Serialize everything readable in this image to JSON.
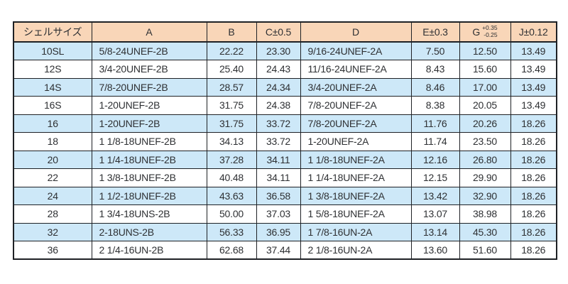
{
  "table": {
    "name": "shell-size-spec-table",
    "colors": {
      "header_bg": "#f9d6b8",
      "row_alt_bg": "#cde8f8",
      "row_bg": "#ffffff",
      "border": "#1e2125",
      "text": "#2e3033"
    },
    "columns": [
      {
        "key": "shell-size",
        "label": "シェルサイズ",
        "align": "center"
      },
      {
        "key": "a",
        "label": "A",
        "align": "left"
      },
      {
        "key": "b",
        "label": "B",
        "align": "center"
      },
      {
        "key": "c",
        "label": "C±0.5",
        "align": "center"
      },
      {
        "key": "d",
        "label": "D",
        "align": "left"
      },
      {
        "key": "e",
        "label": "E±0.3",
        "align": "center"
      },
      {
        "key": "g",
        "label": "G",
        "tolerance_plus": "+0.35",
        "tolerance_minus": "-0.25",
        "align": "center"
      },
      {
        "key": "j",
        "label": "J±0.12",
        "align": "center"
      }
    ],
    "rows": [
      [
        "10SL",
        "5/8-24UNEF-2B",
        "22.22",
        "23.30",
        "9/16-24UNEF-2A",
        "7.50",
        "12.50",
        "13.49"
      ],
      [
        "12S",
        "3/4-20UNEF-2B",
        "25.40",
        "24.43",
        "11/16-24UNEF-2A",
        "8.43",
        "15.60",
        "13.49"
      ],
      [
        "14S",
        "7/8-20UNEF-2B",
        "28.57",
        "24.34",
        "3/4-20UNEF-2A",
        "8.46",
        "17.00",
        "13.49"
      ],
      [
        "16S",
        "1-20UNEF-2B",
        "31.75",
        "24.38",
        "7/8-20UNEF-2A",
        "8.38",
        "20.05",
        "13.49"
      ],
      [
        "16",
        "1-20UNEF-2B",
        "31.75",
        "33.72",
        "7/8-20UNEF-2A",
        "11.76",
        "20.26",
        "18.26"
      ],
      [
        "18",
        "1 1/8-18UNEF-2B",
        "34.13",
        "33.72",
        "1-20UNEF-2A",
        "11.74",
        "23.50",
        "18.26"
      ],
      [
        "20",
        "1 1/4-18UNEF-2B",
        "37.28",
        "34.11",
        "1 1/8-18UNEF-2A",
        "12.16",
        "26.80",
        "18.26"
      ],
      [
        "22",
        "1 3/8-18UNEF-2B",
        "40.48",
        "34.11",
        "1 1/4-18UNEF-2A",
        "12.15",
        "29.90",
        "18.26"
      ],
      [
        "24",
        "1 1/2-18UNEF-2B",
        "43.63",
        "36.58",
        "1 3/8-18UNEF-2A",
        "13.42",
        "32.90",
        "18.26"
      ],
      [
        "28",
        "1 3/4-18UNS-2B",
        "50.00",
        "37.03",
        "1 5/8-18UNEF-2A",
        "13.07",
        "38.98",
        "18.26"
      ],
      [
        "32",
        "2-18UNS-2B",
        "56.33",
        "36.95",
        "1 7/8-16UN-2A",
        "13.14",
        "45.30",
        "18.26"
      ],
      [
        "36",
        "2 1/4-16UN-2B",
        "62.68",
        "37.44",
        "2 1/8-16UN-2A",
        "13.60",
        "51.60",
        "18.26"
      ]
    ]
  }
}
